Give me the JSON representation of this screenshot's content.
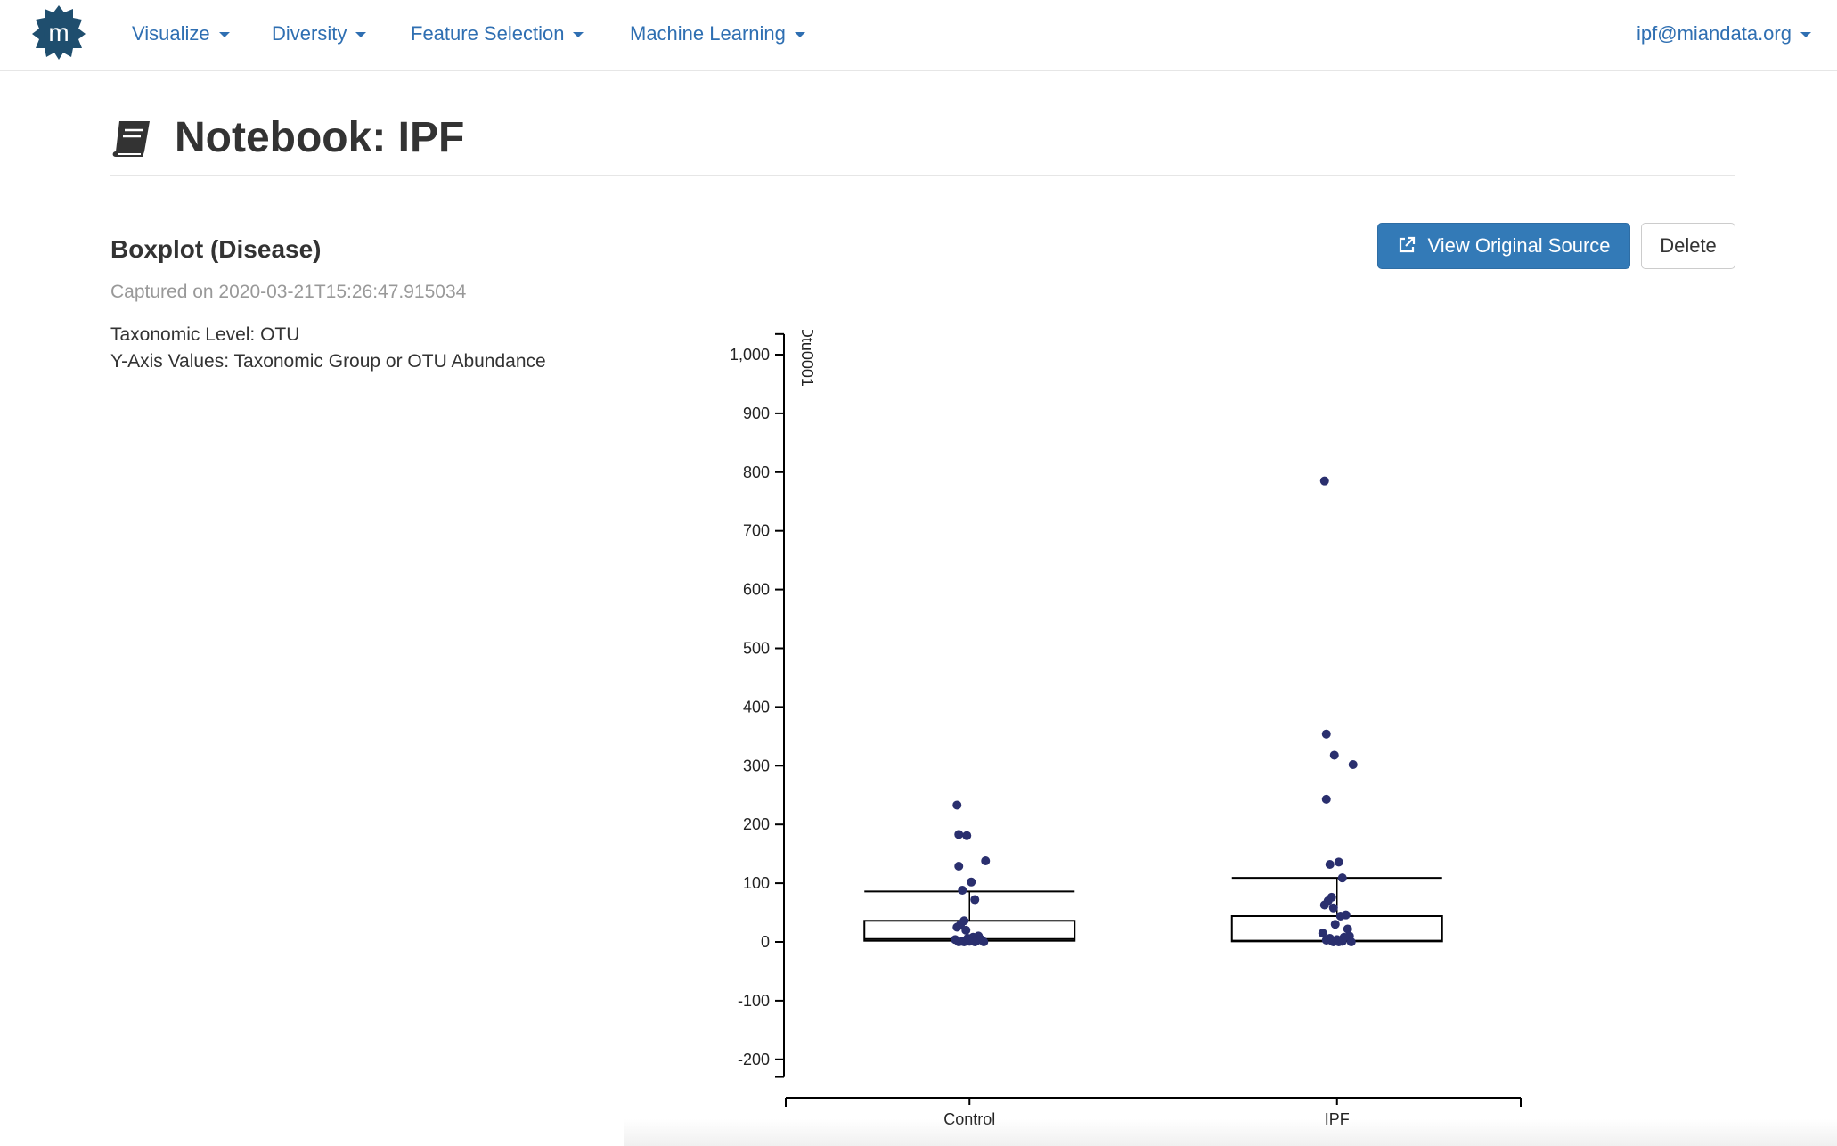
{
  "nav": {
    "items": [
      {
        "label": "Visualize"
      },
      {
        "label": "Diversity"
      },
      {
        "label": "Feature Selection"
      },
      {
        "label": "Machine Learning"
      }
    ],
    "user": "ipf@miandata.org",
    "logo_letter": "m",
    "logo_icon": "mian-logo",
    "colors": {
      "link": "#2f6fb2",
      "logo": "#1f4e6e"
    }
  },
  "page": {
    "title": "Notebook: IPF",
    "title_icon": "book-icon"
  },
  "visualization": {
    "title": "Boxplot (Disease)",
    "captured": "Captured on 2020-03-21T15:26:47.915034",
    "params": [
      "Taxonomic Level: OTU",
      "Y-Axis Values: Taxonomic Group or OTU Abundance"
    ],
    "view_source_label": "View Original Source",
    "view_source_icon": "external-link-icon",
    "delete_label": "Delete",
    "colors": {
      "primary": "#337ab7",
      "points": "#2a2f6e"
    }
  },
  "chart_data": {
    "type": "box",
    "title": "",
    "ylabel": "Otu0001",
    "xlabel": "",
    "categories": [
      "Control",
      "IPF"
    ],
    "ylim": [
      -230,
      1020
    ],
    "yticks": [
      -200,
      -100,
      0,
      100,
      200,
      300,
      400,
      500,
      600,
      700,
      800,
      900,
      1000
    ],
    "ytick_labels": [
      "-200",
      "-100",
      "0",
      "100",
      "200",
      "300",
      "400",
      "500",
      "600",
      "700",
      "800",
      "900",
      "1,000"
    ],
    "grid": false,
    "boxes": [
      {
        "name": "Control",
        "min": 0,
        "q1": 2,
        "median": 5,
        "q3": 36,
        "max": 86
      },
      {
        "name": "IPF",
        "min": 0,
        "q1": 1,
        "median": 2,
        "q3": 44,
        "max": 109
      }
    ],
    "points": [
      {
        "category": "Control",
        "values": [
          233,
          183,
          181,
          138,
          129,
          102,
          88,
          72,
          36,
          30,
          25,
          20,
          10,
          8,
          6,
          5,
          4,
          3,
          2,
          1,
          1,
          0,
          0,
          0,
          0
        ]
      },
      {
        "category": "IPF",
        "values": [
          785,
          354,
          318,
          302,
          243,
          136,
          132,
          109,
          76,
          70,
          63,
          58,
          46,
          44,
          30,
          22,
          15,
          10,
          8,
          6,
          4,
          3,
          2,
          1,
          0,
          0,
          0
        ]
      }
    ]
  }
}
